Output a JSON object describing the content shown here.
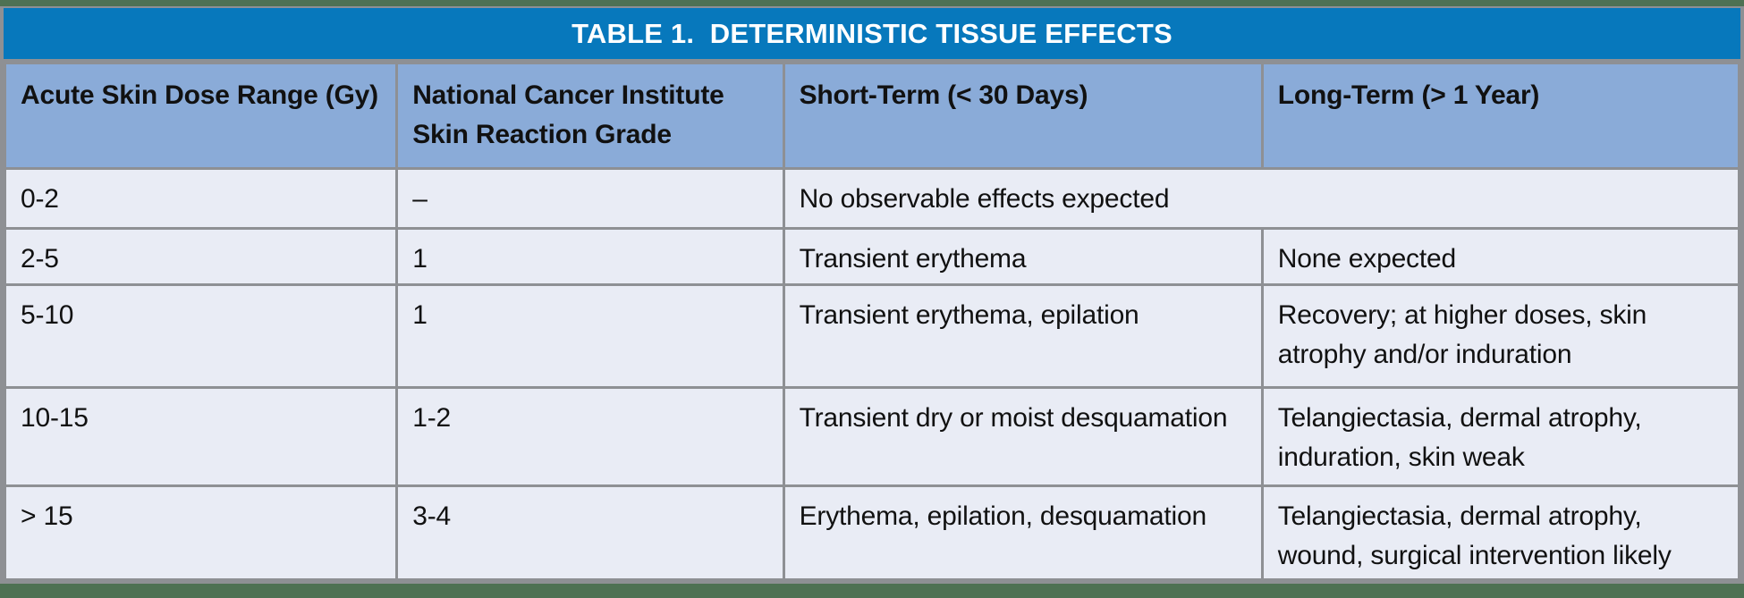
{
  "colors": {
    "page_green": "#4e7153",
    "title_blue": "#0778bc",
    "header_blue": "#8aabd8",
    "row_bg": "#e9ecf5",
    "border_gray": "#8e9094",
    "text": "#111111",
    "title_text": "#ffffff"
  },
  "table": {
    "title": "TABLE 1.  DETERMINISTIC TISSUE EFFECTS",
    "columns": [
      "Acute Skin Dose Range (Gy)",
      "National Cancer Institute Skin Reaction Grade",
      "Short-Term (< 30 Days)",
      "Long-Term (> 1 Year)"
    ],
    "rows": [
      {
        "dose": "0-2",
        "grade": "–",
        "short_term": "No observable effects expected",
        "long_term": "",
        "merged_short_long": true
      },
      {
        "dose": "2-5",
        "grade": "1",
        "short_term": "Transient erythema",
        "long_term": "None expected",
        "merged_short_long": false
      },
      {
        "dose": "5-10",
        "grade": "1",
        "short_term": "Transient erythema, epilation",
        "long_term": "Recovery; at higher doses, skin atrophy and/or induration",
        "merged_short_long": false
      },
      {
        "dose": "10-15",
        "grade": "1-2",
        "short_term": "Transient dry or moist desquamation",
        "long_term": "Telangiectasia, dermal atrophy, induration, skin weak",
        "merged_short_long": false
      },
      {
        "dose": "> 15",
        "grade": "3-4",
        "short_term": "Erythema, epilation, desquamation",
        "long_term": "Telangiectasia, dermal atrophy, wound, surgical intervention likely",
        "merged_short_long": false
      }
    ]
  }
}
